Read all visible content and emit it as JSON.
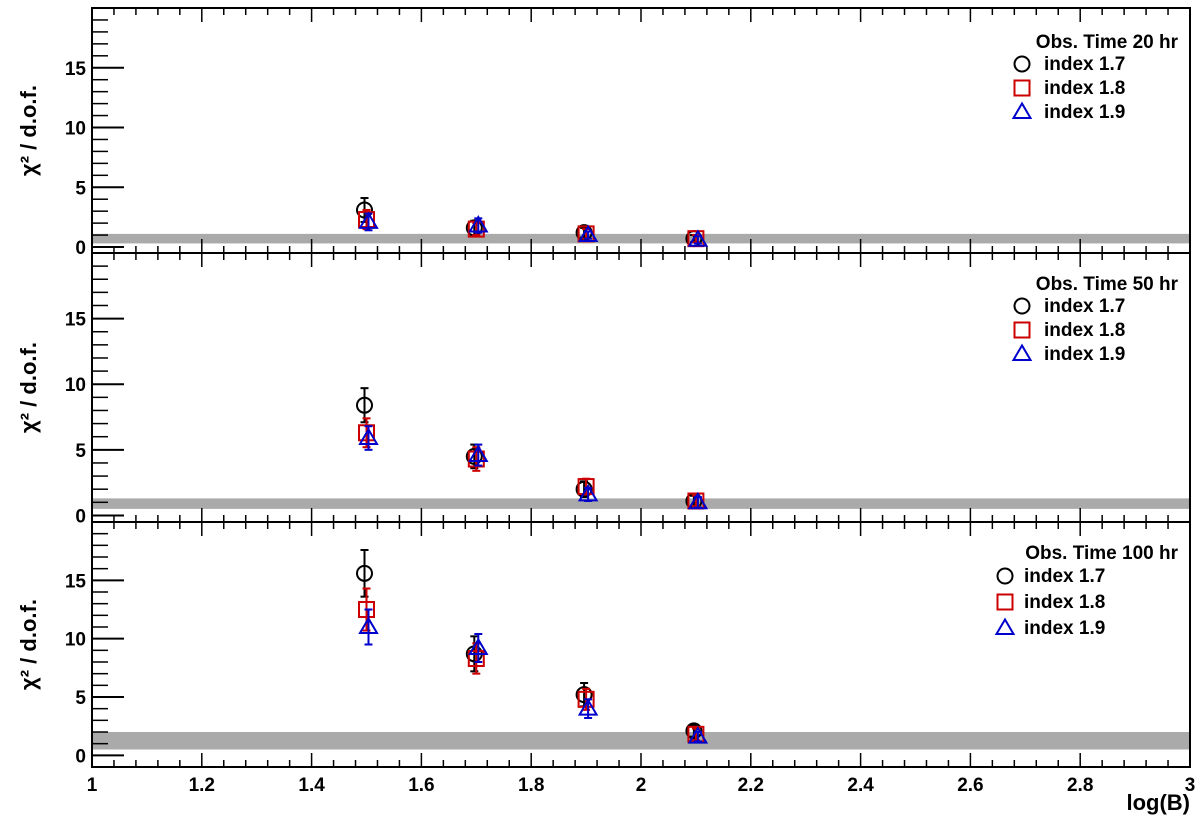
{
  "chart_data": [
    {
      "type": "scatter",
      "title": "Obs. Time 20 hr",
      "ylabel": "χ² / d.o.f.",
      "xlim": [
        1,
        3
      ],
      "ylim": [
        -0.5,
        20
      ],
      "band": [
        0.3,
        1.1
      ],
      "yticks": [
        "0",
        "5",
        "10",
        "15"
      ],
      "series": [
        {
          "name": "index 1.7",
          "marker": "circle",
          "color": "#000000",
          "x": [
            1.5,
            1.7,
            1.9,
            2.1
          ],
          "y": [
            3.1,
            1.6,
            1.2,
            0.7
          ],
          "err": [
            1.0,
            0.6,
            0.4,
            0.3
          ]
        },
        {
          "name": "index 1.8",
          "marker": "square",
          "color": "#cc0000",
          "x": [
            1.5,
            1.7,
            1.9,
            2.1
          ],
          "y": [
            2.3,
            1.5,
            1.1,
            0.7
          ],
          "err": [
            0.8,
            0.5,
            0.4,
            0.3
          ]
        },
        {
          "name": "index 1.9",
          "marker": "triangle",
          "color": "#0000cc",
          "x": [
            1.5,
            1.7,
            1.9,
            2.1
          ],
          "y": [
            2.1,
            1.8,
            1.0,
            0.6
          ],
          "err": [
            0.7,
            0.6,
            0.3,
            0.3
          ]
        }
      ]
    },
    {
      "type": "scatter",
      "title": "Obs. Time 50 hr",
      "ylabel": "χ² / d.o.f.",
      "xlim": [
        1,
        3
      ],
      "ylim": [
        -0.5,
        20
      ],
      "band": [
        0.5,
        1.3
      ],
      "yticks": [
        "0",
        "5",
        "10",
        "15"
      ],
      "series": [
        {
          "name": "index 1.7",
          "marker": "circle",
          "color": "#000000",
          "x": [
            1.5,
            1.7,
            1.9,
            2.1
          ],
          "y": [
            8.4,
            4.5,
            2.0,
            1.1
          ],
          "err": [
            1.3,
            0.9,
            0.6,
            0.4
          ]
        },
        {
          "name": "index 1.8",
          "marker": "square",
          "color": "#cc0000",
          "x": [
            1.5,
            1.7,
            1.9,
            2.1
          ],
          "y": [
            6.3,
            4.3,
            2.2,
            1.1
          ],
          "err": [
            1.1,
            0.9,
            0.6,
            0.4
          ]
        },
        {
          "name": "index 1.9",
          "marker": "triangle",
          "color": "#0000cc",
          "x": [
            1.5,
            1.7,
            1.9,
            2.1
          ],
          "y": [
            5.9,
            4.6,
            1.6,
            1.0
          ],
          "err": [
            0.9,
            0.8,
            0.5,
            0.4
          ]
        }
      ]
    },
    {
      "type": "scatter",
      "title": "Obs. Time 100 hr",
      "xlabel": "log(B)",
      "ylabel": "χ² / d.o.f.",
      "xlim": [
        1,
        3
      ],
      "ylim": [
        -1,
        20
      ],
      "band": [
        0.5,
        2.0
      ],
      "yticks": [
        "0",
        "5",
        "10",
        "15"
      ],
      "xticks": [
        "1",
        "1.2",
        "1.4",
        "1.6",
        "1.8",
        "2",
        "2.2",
        "2.4",
        "2.6",
        "2.8",
        "3"
      ],
      "series": [
        {
          "name": "index 1.7",
          "marker": "circle",
          "color": "#000000",
          "x": [
            1.5,
            1.7,
            1.9,
            2.1
          ],
          "y": [
            15.6,
            8.7,
            5.2,
            2.1
          ],
          "err": [
            2.0,
            1.5,
            1.0,
            0.5
          ]
        },
        {
          "name": "index 1.8",
          "marker": "square",
          "color": "#cc0000",
          "x": [
            1.5,
            1.7,
            1.9,
            2.1
          ],
          "y": [
            12.5,
            8.3,
            4.8,
            1.8
          ],
          "err": [
            1.8,
            1.3,
            0.9,
            0.5
          ]
        },
        {
          "name": "index 1.9",
          "marker": "triangle",
          "color": "#0000cc",
          "x": [
            1.5,
            1.7,
            1.9,
            2.1
          ],
          "y": [
            11.0,
            9.2,
            4.0,
            1.6
          ],
          "err": [
            1.5,
            1.2,
            0.8,
            0.4
          ]
        }
      ]
    }
  ]
}
